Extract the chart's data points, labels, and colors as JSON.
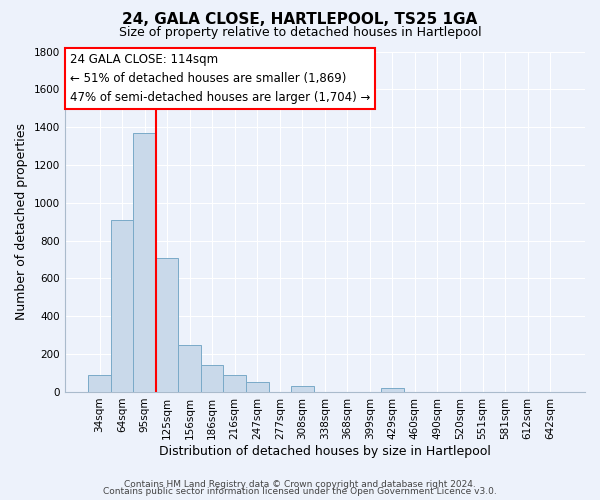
{
  "title": "24, GALA CLOSE, HARTLEPOOL, TS25 1GA",
  "subtitle": "Size of property relative to detached houses in Hartlepool",
  "xlabel": "Distribution of detached houses by size in Hartlepool",
  "ylabel": "Number of detached properties",
  "bar_labels": [
    "34sqm",
    "64sqm",
    "95sqm",
    "125sqm",
    "156sqm",
    "186sqm",
    "216sqm",
    "247sqm",
    "277sqm",
    "308sqm",
    "338sqm",
    "368sqm",
    "399sqm",
    "429sqm",
    "460sqm",
    "490sqm",
    "520sqm",
    "551sqm",
    "581sqm",
    "612sqm",
    "642sqm"
  ],
  "bar_values": [
    90,
    910,
    1370,
    710,
    250,
    145,
    90,
    55,
    0,
    30,
    0,
    0,
    0,
    20,
    0,
    0,
    0,
    0,
    0,
    0,
    0
  ],
  "bar_color": "#c9d9ea",
  "bar_edge_color": "#7aaac8",
  "ylim": [
    0,
    1800
  ],
  "yticks": [
    0,
    200,
    400,
    600,
    800,
    1000,
    1200,
    1400,
    1600,
    1800
  ],
  "vline_x": 2.5,
  "vline_color": "red",
  "ann_line1": "24 GALA CLOSE: 114sqm",
  "ann_line2": "← 51% of detached houses are smaller (1,869)",
  "ann_line3": "47% of semi-detached houses are larger (1,704) →",
  "footer_line1": "Contains HM Land Registry data © Crown copyright and database right 2024.",
  "footer_line2": "Contains public sector information licensed under the Open Government Licence v3.0.",
  "background_color": "#edf2fb",
  "grid_color": "#ffffff",
  "title_fontsize": 11,
  "subtitle_fontsize": 9,
  "axis_label_fontsize": 9,
  "tick_fontsize": 7.5,
  "footer_fontsize": 6.5,
  "ann_fontsize": 8.5
}
